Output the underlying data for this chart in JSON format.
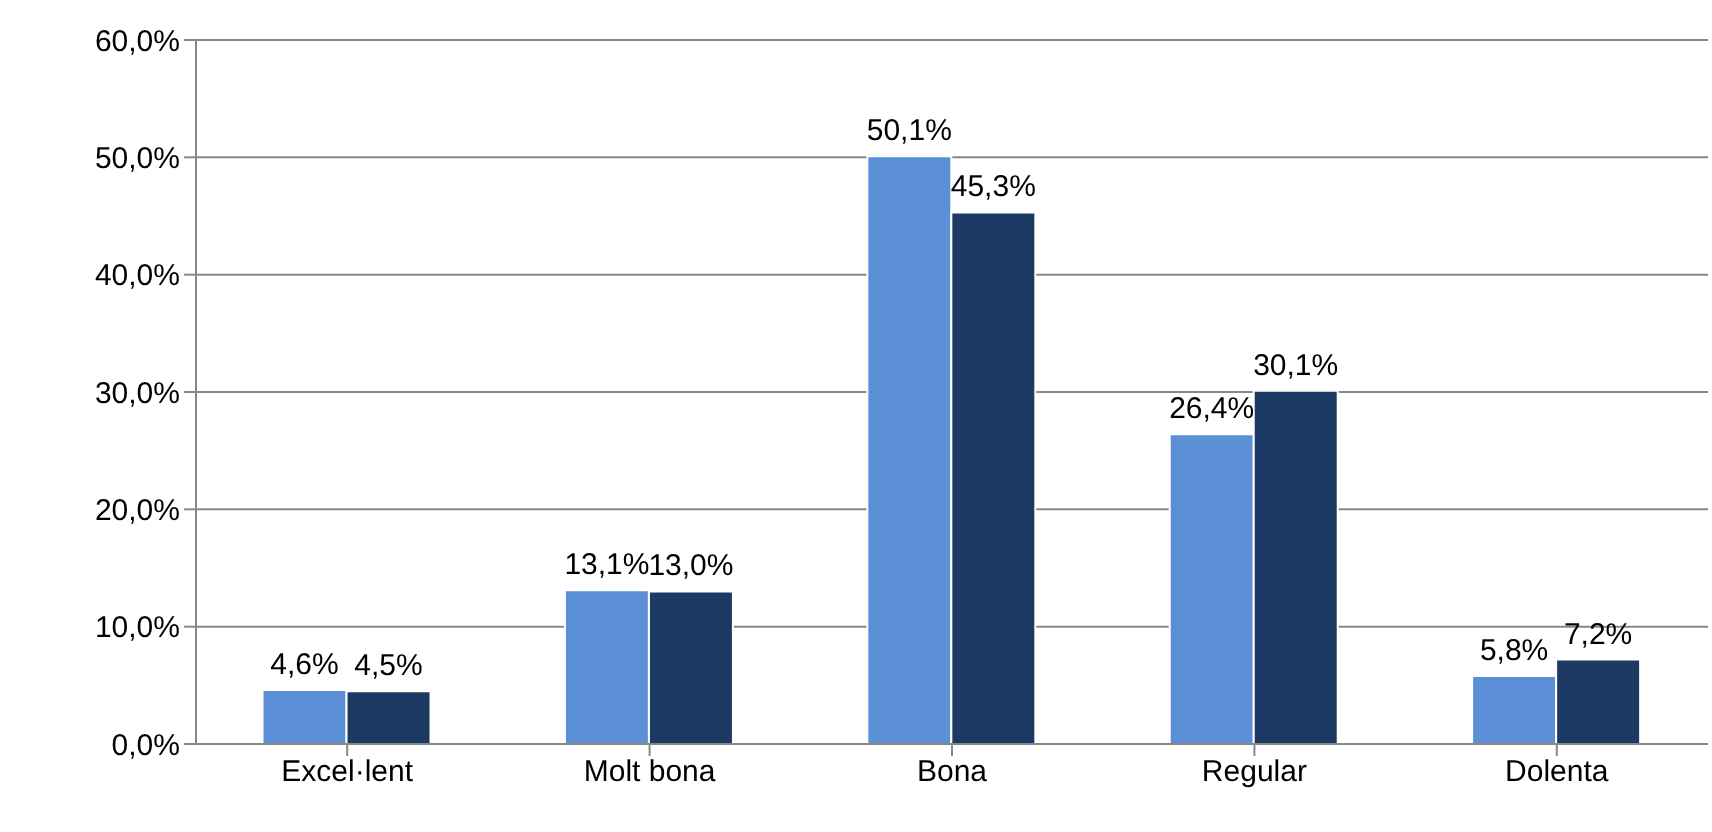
{
  "chart_data": {
    "type": "bar",
    "categories": [
      "Excel·lent",
      "Molt bona",
      "Bona",
      "Regular",
      "Dolenta"
    ],
    "series": [
      {
        "color": "#5b8fd6",
        "values": [
          4.6,
          13.1,
          50.1,
          26.4,
          5.8
        ],
        "value_labels": [
          "4,6%",
          "13,1%",
          "50,1%",
          "26,4%",
          "5,8%"
        ]
      },
      {
        "color": "#1c3a63",
        "values": [
          4.5,
          13.0,
          45.3,
          30.1,
          7.2
        ],
        "value_labels": [
          "4,5%",
          "13,0%",
          "45,3%",
          "30,1%",
          "7,2%"
        ]
      }
    ],
    "ylim": [
      0,
      60
    ],
    "yticks": [
      {
        "value": 0,
        "label": "0,0%"
      },
      {
        "value": 10,
        "label": "10,0%"
      },
      {
        "value": 20,
        "label": "20,0%"
      },
      {
        "value": 30,
        "label": "30,0%"
      },
      {
        "value": 40,
        "label": "40,0%"
      },
      {
        "value": 50,
        "label": "50,0%"
      },
      {
        "value": 60,
        "label": "60,0%"
      }
    ],
    "grid": "y",
    "legend": false
  }
}
